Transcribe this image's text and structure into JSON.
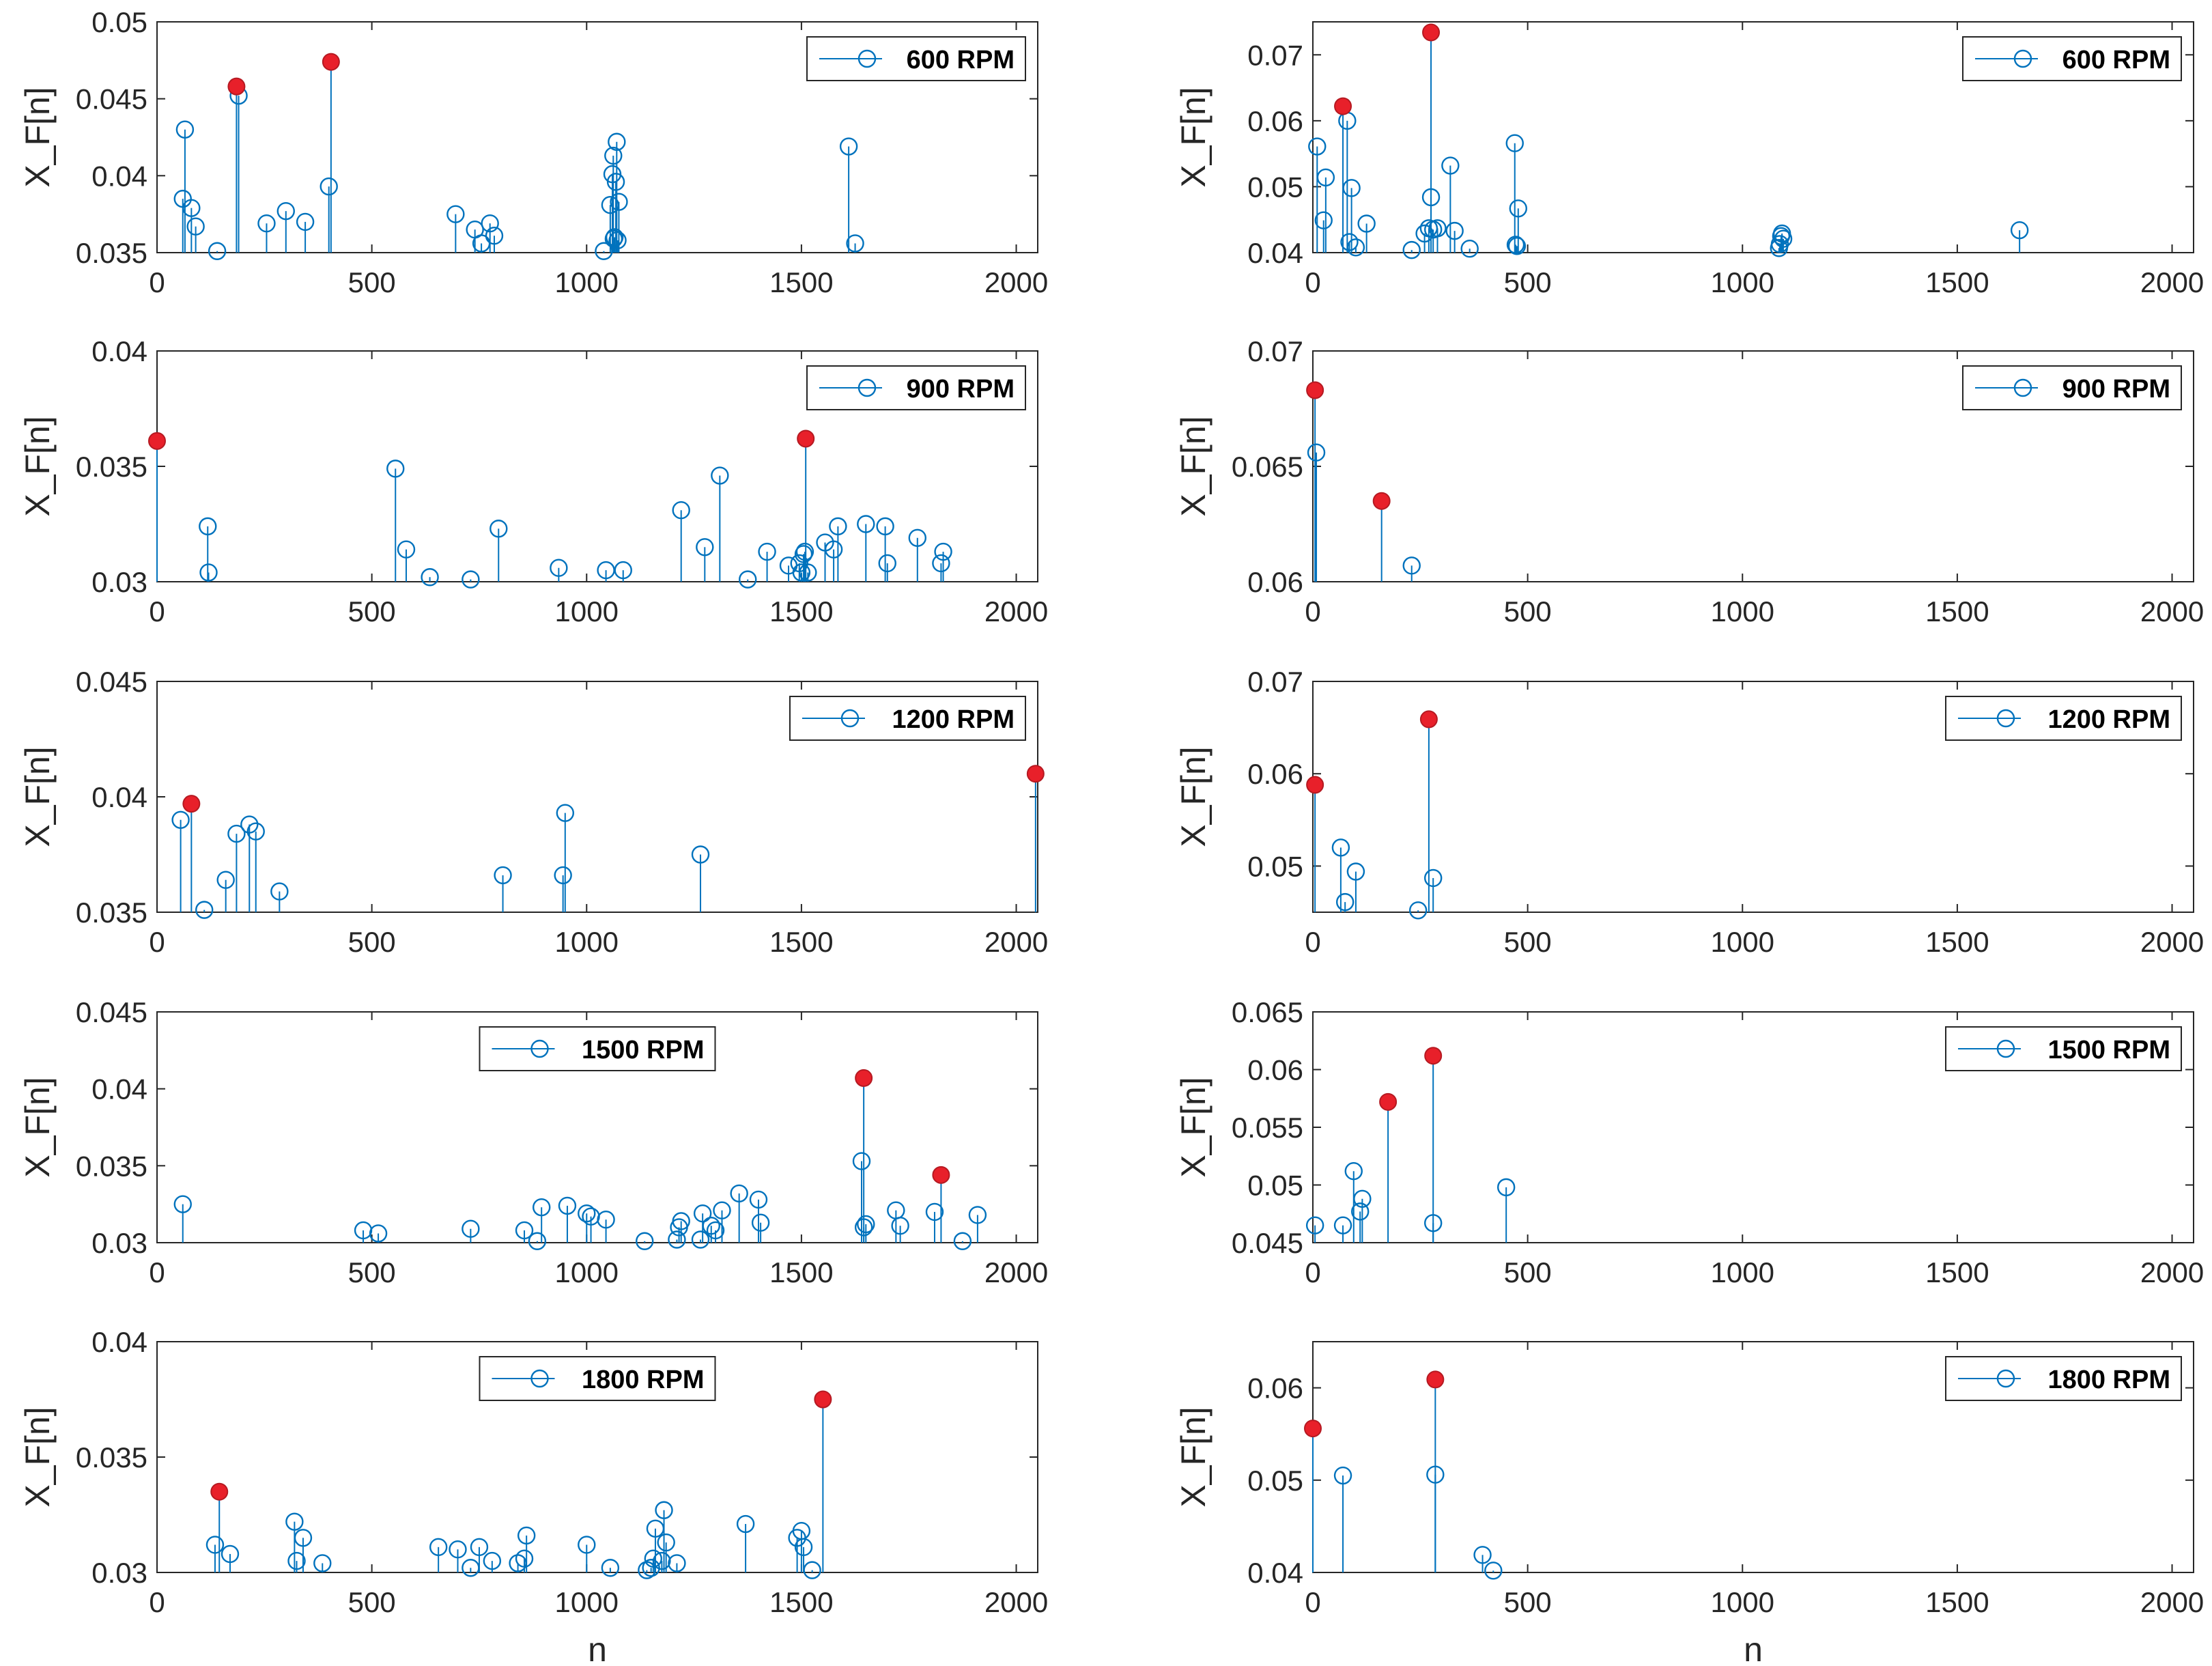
{
  "colors": {
    "stem": "#0072BD",
    "marker_edge": "#0072BD",
    "highlight_fill": "#E8202A",
    "highlight_edge": "#B51A22",
    "axis": "#262626",
    "legend_border": "#262626"
  },
  "chart_data": [
    {
      "type": "stem",
      "id": "r1c1",
      "legend": "600 RPM",
      "legend_loc": "top-right",
      "xlabel": "",
      "ylabel": "X_F[n]",
      "xlim": [
        0,
        2050
      ],
      "ylim": [
        0.035,
        0.05
      ],
      "xticks": [
        0,
        500,
        1000,
        1500,
        2000
      ],
      "xtick_labels": [
        "0",
        "500",
        "1000",
        "1500",
        "2000"
      ],
      "yticks": [
        0.035,
        0.04,
        0.045,
        0.05
      ],
      "ytick_labels": [
        "0.035",
        "0.04",
        "0.045",
        "0.05"
      ],
      "points": [
        [
          60,
          0.0385
        ],
        [
          65,
          0.043
        ],
        [
          80,
          0.0379
        ],
        [
          90,
          0.0367
        ],
        [
          140,
          0.0351
        ],
        [
          190,
          0.0452
        ],
        [
          255,
          0.0369
        ],
        [
          300,
          0.0377
        ],
        [
          345,
          0.037
        ],
        [
          400,
          0.0393
        ],
        [
          695,
          0.0375
        ],
        [
          740,
          0.0365
        ],
        [
          755,
          0.0356
        ],
        [
          775,
          0.0369
        ],
        [
          785,
          0.0361
        ],
        [
          1040,
          0.0351
        ],
        [
          1055,
          0.0381
        ],
        [
          1060,
          0.0401
        ],
        [
          1062,
          0.0413
        ],
        [
          1063,
          0.0359
        ],
        [
          1065,
          0.036
        ],
        [
          1068,
          0.0396
        ],
        [
          1070,
          0.0422
        ],
        [
          1072,
          0.0358
        ],
        [
          1075,
          0.0383
        ],
        [
          1610,
          0.0419
        ],
        [
          1625,
          0.0356
        ]
      ],
      "highlights": [
        [
          185,
          0.0458
        ],
        [
          405,
          0.0474
        ]
      ]
    },
    {
      "type": "stem",
      "id": "r1c2",
      "legend": "600 RPM",
      "legend_loc": "top-right",
      "xlabel": "",
      "ylabel": "X_F[n]",
      "xlim": [
        0,
        2050
      ],
      "ylim": [
        0.04,
        0.075
      ],
      "xticks": [
        0,
        500,
        1000,
        1500,
        2000
      ],
      "xtick_labels": [
        "0",
        "500",
        "1000",
        "1500",
        "2000"
      ],
      "yticks": [
        0.04,
        0.05,
        0.06,
        0.07
      ],
      "ytick_labels": [
        "0.04",
        "0.05",
        "0.06",
        "0.07"
      ],
      "points": [
        [
          10,
          0.0561
        ],
        [
          25,
          0.0449
        ],
        [
          30,
          0.0514
        ],
        [
          80,
          0.06
        ],
        [
          85,
          0.0416
        ],
        [
          90,
          0.0498
        ],
        [
          100,
          0.0408
        ],
        [
          125,
          0.0444
        ],
        [
          230,
          0.0404
        ],
        [
          260,
          0.0429
        ],
        [
          270,
          0.0437
        ],
        [
          275,
          0.0484
        ],
        [
          280,
          0.0435
        ],
        [
          290,
          0.0437
        ],
        [
          320,
          0.0532
        ],
        [
          330,
          0.0433
        ],
        [
          365,
          0.0406
        ],
        [
          470,
          0.0566
        ],
        [
          472,
          0.0412
        ],
        [
          475,
          0.041
        ],
        [
          478,
          0.0467
        ],
        [
          1085,
          0.0407
        ],
        [
          1087,
          0.0413
        ],
        [
          1090,
          0.0425
        ],
        [
          1092,
          0.0429
        ],
        [
          1095,
          0.0421
        ],
        [
          1645,
          0.0434
        ]
      ],
      "highlights": [
        [
          70,
          0.0622
        ],
        [
          275,
          0.0734
        ]
      ]
    },
    {
      "type": "stem",
      "id": "r2c1",
      "legend": "900 RPM",
      "legend_loc": "top-right",
      "xlabel": "",
      "ylabel": "X_F[n]",
      "xlim": [
        0,
        2050
      ],
      "ylim": [
        0.03,
        0.04
      ],
      "xticks": [
        0,
        500,
        1000,
        1500,
        2000
      ],
      "xtick_labels": [
        "0",
        "500",
        "1000",
        "1500",
        "2000"
      ],
      "yticks": [
        0.03,
        0.035,
        0.04
      ],
      "ytick_labels": [
        "0.03",
        "0.035",
        "0.04"
      ],
      "points": [
        [
          118,
          0.0324
        ],
        [
          120,
          0.0304
        ],
        [
          555,
          0.0349
        ],
        [
          580,
          0.0314
        ],
        [
          635,
          0.0302
        ],
        [
          730,
          0.0301
        ],
        [
          795,
          0.0323
        ],
        [
          935,
          0.0306
        ],
        [
          1045,
          0.0305
        ],
        [
          1085,
          0.0305
        ],
        [
          1220,
          0.0331
        ],
        [
          1275,
          0.0315
        ],
        [
          1310,
          0.0346
        ],
        [
          1375,
          0.0301
        ],
        [
          1420,
          0.0313
        ],
        [
          1470,
          0.0307
        ],
        [
          1495,
          0.0308
        ],
        [
          1500,
          0.0304
        ],
        [
          1505,
          0.0312
        ],
        [
          1508,
          0.0313
        ],
        [
          1515,
          0.0304
        ],
        [
          1555,
          0.0317
        ],
        [
          1575,
          0.0314
        ],
        [
          1585,
          0.0324
        ],
        [
          1650,
          0.0325
        ],
        [
          1695,
          0.0324
        ],
        [
          1700,
          0.0308
        ],
        [
          1770,
          0.0319
        ],
        [
          1825,
          0.0308
        ],
        [
          1830,
          0.0313
        ]
      ],
      "highlights": [
        [
          0,
          0.0361
        ],
        [
          1510,
          0.0362
        ]
      ]
    },
    {
      "type": "stem",
      "id": "r2c2",
      "legend": "900 RPM",
      "legend_loc": "top-right",
      "xlabel": "",
      "ylabel": "X_F[n]",
      "xlim": [
        0,
        2050
      ],
      "ylim": [
        0.06,
        0.07
      ],
      "xticks": [
        0,
        500,
        1000,
        1500,
        2000
      ],
      "xtick_labels": [
        "0",
        "500",
        "1000",
        "1500",
        "2000"
      ],
      "yticks": [
        0.06,
        0.065,
        0.07
      ],
      "ytick_labels": [
        "0.06",
        "0.065",
        "0.07"
      ],
      "points": [
        [
          8,
          0.0656
        ],
        [
          230,
          0.0607
        ]
      ],
      "highlights": [
        [
          5,
          0.0683
        ],
        [
          160,
          0.0635
        ]
      ]
    },
    {
      "type": "stem",
      "id": "r3c1",
      "legend": "1200 RPM",
      "legend_loc": "top-right",
      "xlabel": "",
      "ylabel": "X_F[n]",
      "xlim": [
        0,
        2050
      ],
      "ylim": [
        0.035,
        0.045
      ],
      "xticks": [
        0,
        500,
        1000,
        1500,
        2000
      ],
      "xtick_labels": [
        "0",
        "500",
        "1000",
        "1500",
        "2000"
      ],
      "yticks": [
        0.035,
        0.04,
        0.045
      ],
      "ytick_labels": [
        "0.035",
        "0.04",
        "0.045"
      ],
      "points": [
        [
          55,
          0.039
        ],
        [
          110,
          0.0351
        ],
        [
          160,
          0.0364
        ],
        [
          185,
          0.0384
        ],
        [
          215,
          0.0388
        ],
        [
          230,
          0.0385
        ],
        [
          285,
          0.0359
        ],
        [
          805,
          0.0366
        ],
        [
          945,
          0.0366
        ],
        [
          950,
          0.0393
        ],
        [
          1265,
          0.0375
        ]
      ],
      "highlights": [
        [
          80,
          0.0397
        ],
        [
          2045,
          0.041
        ]
      ]
    },
    {
      "type": "stem",
      "id": "r3c2",
      "legend": "1200 RPM",
      "legend_loc": "top-right",
      "xlabel": "",
      "ylabel": "X_F[n]",
      "xlim": [
        0,
        2050
      ],
      "ylim": [
        0.045,
        0.07
      ],
      "xticks": [
        0,
        500,
        1000,
        1500,
        2000
      ],
      "xtick_labels": [
        "0",
        "500",
        "1000",
        "1500",
        "2000"
      ],
      "yticks": [
        0.05,
        0.06,
        0.07
      ],
      "ytick_labels": [
        "0.05",
        "0.06",
        "0.07"
      ],
      "points": [
        [
          65,
          0.052
        ],
        [
          75,
          0.0461
        ],
        [
          100,
          0.0494
        ],
        [
          245,
          0.0452
        ],
        [
          280,
          0.0487
        ]
      ],
      "highlights": [
        [
          5,
          0.0588
        ],
        [
          270,
          0.0659
        ]
      ]
    },
    {
      "type": "stem",
      "id": "r4c1",
      "legend": "1500 RPM",
      "legend_loc": "top-center",
      "xlabel": "",
      "ylabel": "X_F[n]",
      "xlim": [
        0,
        2050
      ],
      "ylim": [
        0.03,
        0.045
      ],
      "xticks": [
        0,
        500,
        1000,
        1500,
        2000
      ],
      "xtick_labels": [
        "0",
        "500",
        "1000",
        "1500",
        "2000"
      ],
      "yticks": [
        0.03,
        0.035,
        0.04,
        0.045
      ],
      "ytick_labels": [
        "0.03",
        "0.035",
        "0.04",
        "0.045"
      ],
      "points": [
        [
          60,
          0.0325
        ],
        [
          480,
          0.0308
        ],
        [
          515,
          0.0306
        ],
        [
          730,
          0.0309
        ],
        [
          855,
          0.0308
        ],
        [
          885,
          0.0301
        ],
        [
          895,
          0.0323
        ],
        [
          955,
          0.0324
        ],
        [
          1000,
          0.0319
        ],
        [
          1010,
          0.0317
        ],
        [
          1045,
          0.0315
        ],
        [
          1135,
          0.0301
        ],
        [
          1210,
          0.0302
        ],
        [
          1215,
          0.031
        ],
        [
          1220,
          0.0314
        ],
        [
          1265,
          0.0302
        ],
        [
          1270,
          0.0319
        ],
        [
          1290,
          0.0311
        ],
        [
          1300,
          0.0308
        ],
        [
          1315,
          0.0321
        ],
        [
          1355,
          0.0332
        ],
        [
          1400,
          0.0328
        ],
        [
          1405,
          0.0313
        ],
        [
          1640,
          0.0353
        ],
        [
          1645,
          0.031
        ],
        [
          1650,
          0.0312
        ],
        [
          1720,
          0.0321
        ],
        [
          1730,
          0.0311
        ],
        [
          1810,
          0.032
        ],
        [
          1875,
          0.0301
        ],
        [
          1910,
          0.0318
        ]
      ],
      "highlights": [
        [
          1645,
          0.0407
        ],
        [
          1825,
          0.0344
        ]
      ]
    },
    {
      "type": "stem",
      "id": "r4c2",
      "legend": "1500 RPM",
      "legend_loc": "top-right",
      "xlabel": "",
      "ylabel": "X_F[n]",
      "xlim": [
        0,
        2050
      ],
      "ylim": [
        0.045,
        0.065
      ],
      "xticks": [
        0,
        500,
        1000,
        1500,
        2000
      ],
      "xtick_labels": [
        "0",
        "500",
        "1000",
        "1500",
        "2000"
      ],
      "yticks": [
        0.045,
        0.05,
        0.055,
        0.06,
        0.065
      ],
      "ytick_labels": [
        "0.045",
        "0.05",
        "0.055",
        "0.06",
        "0.065"
      ],
      "points": [
        [
          5,
          0.0465
        ],
        [
          70,
          0.0465
        ],
        [
          95,
          0.0512
        ],
        [
          110,
          0.0477
        ],
        [
          115,
          0.0488
        ],
        [
          280,
          0.0467
        ],
        [
          450,
          0.0498
        ]
      ],
      "highlights": [
        [
          175,
          0.0572
        ],
        [
          280,
          0.0612
        ]
      ]
    },
    {
      "type": "stem",
      "id": "r5c1",
      "legend": "1800 RPM",
      "legend_loc": "top-center",
      "xlabel": "n",
      "ylabel": "X_F[n]",
      "xlim": [
        0,
        2050
      ],
      "ylim": [
        0.03,
        0.04
      ],
      "xticks": [
        0,
        500,
        1000,
        1500,
        2000
      ],
      "xtick_labels": [
        "0",
        "500",
        "1000",
        "1500",
        "2000"
      ],
      "yticks": [
        0.03,
        0.035,
        0.04
      ],
      "ytick_labels": [
        "0.03",
        "0.035",
        "0.04"
      ],
      "points": [
        [
          135,
          0.0312
        ],
        [
          170,
          0.0308
        ],
        [
          320,
          0.0322
        ],
        [
          325,
          0.0305
        ],
        [
          340,
          0.0315
        ],
        [
          385,
          0.0304
        ],
        [
          655,
          0.0311
        ],
        [
          700,
          0.031
        ],
        [
          730,
          0.0302
        ],
        [
          750,
          0.0311
        ],
        [
          780,
          0.0305
        ],
        [
          840,
          0.0304
        ],
        [
          855,
          0.0306
        ],
        [
          860,
          0.0316
        ],
        [
          1000,
          0.0312
        ],
        [
          1055,
          0.0302
        ],
        [
          1140,
          0.0301
        ],
        [
          1150,
          0.0302
        ],
        [
          1155,
          0.0306
        ],
        [
          1160,
          0.0319
        ],
        [
          1175,
          0.0305
        ],
        [
          1180,
          0.0327
        ],
        [
          1185,
          0.0313
        ],
        [
          1210,
          0.0304
        ],
        [
          1370,
          0.0321
        ],
        [
          1490,
          0.0315
        ],
        [
          1500,
          0.0318
        ],
        [
          1505,
          0.0311
        ],
        [
          1525,
          0.0301
        ]
      ],
      "highlights": [
        [
          145,
          0.0335
        ],
        [
          1550,
          0.0375
        ]
      ]
    },
    {
      "type": "stem",
      "id": "r5c2",
      "legend": "1800 RPM",
      "legend_loc": "top-right",
      "xlabel": "n",
      "ylabel": "X_F[n]",
      "xlim": [
        0,
        2050
      ],
      "ylim": [
        0.04,
        0.065
      ],
      "xticks": [
        0,
        500,
        1000,
        1500,
        2000
      ],
      "xtick_labels": [
        "0",
        "500",
        "1000",
        "1500",
        "2000"
      ],
      "yticks": [
        0.04,
        0.05,
        0.06
      ],
      "ytick_labels": [
        "0.04",
        "0.05",
        "0.06"
      ],
      "points": [
        [
          70,
          0.0505
        ],
        [
          285,
          0.0506
        ],
        [
          395,
          0.0419
        ],
        [
          420,
          0.0402
        ]
      ],
      "highlights": [
        [
          0,
          0.0556
        ],
        [
          285,
          0.0609
        ]
      ]
    }
  ]
}
